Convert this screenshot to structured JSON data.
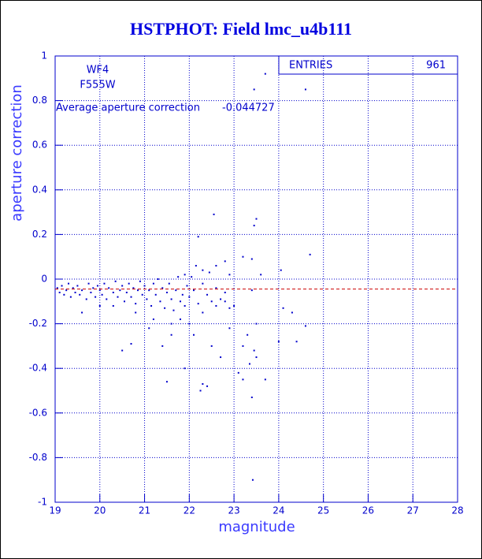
{
  "chart_data": {
    "type": "scatter",
    "title": "HSTPHOT: Field lmc_u4b111",
    "x_label": "magnitude",
    "y_label": "aperture correction",
    "chip": "WF4",
    "filter": "F555W",
    "stats_label": "ENTRIES",
    "entries": 961,
    "mean_label": "Average aperture correction",
    "mean": -0.044727,
    "mean_color": "#cc0000",
    "color": "#0000cc",
    "grid": true,
    "xlim": [
      19,
      28
    ],
    "xticks": [
      19,
      20,
      21,
      22,
      23,
      24,
      25,
      26,
      27,
      28
    ],
    "ylim": [
      -1,
      1
    ],
    "yticks": [
      -1,
      -0.8,
      -0.6,
      -0.4,
      -0.2,
      0,
      0.2,
      0.4,
      0.6,
      0.8,
      1
    ],
    "x": [
      19.05,
      19.1,
      19.15,
      19.2,
      19.25,
      19.3,
      19.35,
      19.4,
      19.45,
      19.5,
      19.55,
      19.6,
      19.7,
      19.75,
      19.8,
      19.85,
      19.9,
      19.95,
      20.0,
      20.05,
      20.1,
      20.15,
      20.2,
      20.3,
      20.35,
      20.4,
      20.45,
      20.5,
      20.55,
      20.6,
      20.65,
      20.7,
      20.75,
      20.8,
      20.85,
      20.9,
      20.95,
      21.0,
      21.05,
      21.1,
      21.15,
      21.2,
      21.25,
      21.3,
      21.35,
      21.4,
      21.45,
      21.5,
      21.55,
      21.6,
      21.65,
      21.7,
      21.75,
      21.8,
      21.85,
      21.9,
      21.95,
      22.0,
      22.1,
      22.2,
      22.3,
      22.4,
      22.5,
      22.6,
      22.7,
      22.8,
      22.9,
      23.7,
      23.45,
      24.6,
      23.5,
      23.45,
      22.55,
      24.7,
      23.2,
      23.4,
      22.2,
      22.8,
      22.6,
      22.9,
      24.05,
      23.6,
      23.4,
      24.1,
      24.3,
      24.6,
      24.4,
      23.5,
      23.3,
      23.2,
      23.45,
      23.1,
      23.2,
      23.35,
      23.5,
      23.7,
      24.0,
      23.4,
      23.42,
      22.3,
      22.25,
      22.4,
      21.5,
      21.9,
      22.5,
      22.7,
      22.1,
      22.9,
      20.7,
      20.5,
      21.4,
      21.6,
      22.0,
      21.2,
      20.8,
      20.3,
      19.6,
      20.0,
      21.8,
      22.3,
      22.6,
      22.8,
      23.0,
      22.15,
      22.3,
      22.45,
      21.9,
      22.05,
      21.6,
      21.1
    ],
    "values": [
      -0.04,
      -0.06,
      -0.03,
      -0.07,
      -0.05,
      -0.02,
      -0.08,
      -0.04,
      -0.06,
      -0.03,
      -0.07,
      -0.05,
      -0.09,
      -0.02,
      -0.06,
      -0.04,
      -0.08,
      -0.03,
      -0.05,
      -0.07,
      -0.02,
      -0.09,
      -0.04,
      -0.06,
      -0.01,
      -0.08,
      -0.05,
      -0.03,
      -0.1,
      -0.06,
      -0.02,
      -0.08,
      -0.04,
      -0.11,
      -0.05,
      -0.01,
      -0.07,
      -0.03,
      -0.09,
      -0.05,
      -0.12,
      -0.02,
      -0.07,
      0.0,
      -0.1,
      -0.04,
      -0.13,
      -0.06,
      -0.02,
      -0.09,
      -0.14,
      -0.05,
      0.01,
      -0.1,
      -0.07,
      -0.12,
      -0.03,
      -0.08,
      -0.05,
      -0.11,
      -0.02,
      -0.07,
      -0.1,
      -0.04,
      -0.09,
      -0.06,
      -0.13,
      0.92,
      0.85,
      0.85,
      0.27,
      0.24,
      0.29,
      0.11,
      0.1,
      0.09,
      0.19,
      0.08,
      0.06,
      0.02,
      0.04,
      0.02,
      -0.05,
      -0.13,
      -0.15,
      -0.21,
      -0.28,
      -0.2,
      -0.25,
      -0.3,
      -0.32,
      -0.42,
      -0.45,
      -0.38,
      -0.35,
      -0.45,
      -0.28,
      -0.53,
      -0.9,
      -0.47,
      -0.5,
      -0.48,
      -0.46,
      -0.4,
      -0.3,
      -0.35,
      -0.25,
      -0.22,
      -0.29,
      -0.32,
      -0.3,
      -0.25,
      -0.2,
      -0.18,
      -0.15,
      -0.12,
      -0.15,
      -0.12,
      -0.18,
      -0.15,
      -0.12,
      -0.1,
      -0.12,
      0.06,
      0.04,
      0.03,
      0.02,
      0.01,
      -0.2,
      -0.22
    ]
  }
}
